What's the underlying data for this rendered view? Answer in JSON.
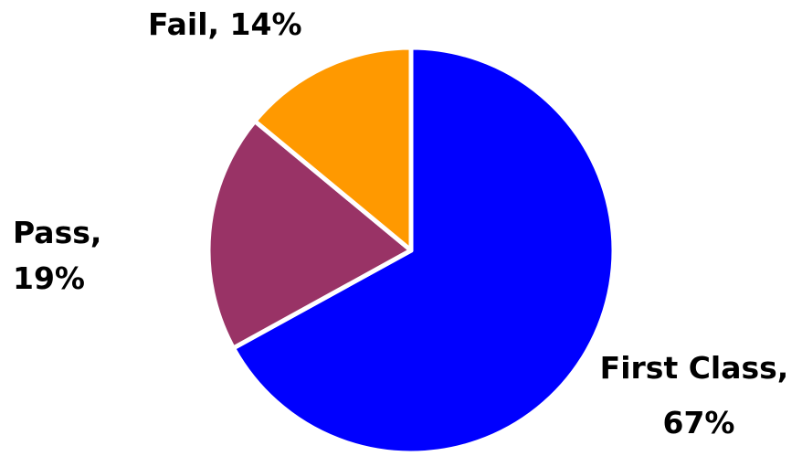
{
  "chart_data": {
    "type": "pie",
    "title": "",
    "slices": [
      {
        "label": "First Class",
        "value": 67,
        "value_label": "67%",
        "color": "#0000FF"
      },
      {
        "label": "Pass",
        "value": 19,
        "value_label": "19%",
        "color": "#993366"
      },
      {
        "label": "Fail",
        "value": 14,
        "value_label": "14%",
        "color": "#FF9900"
      }
    ],
    "start_angle_deg": 0,
    "direction": "clockwise",
    "legend": "none",
    "data_labels": "category-name-and-percent"
  }
}
